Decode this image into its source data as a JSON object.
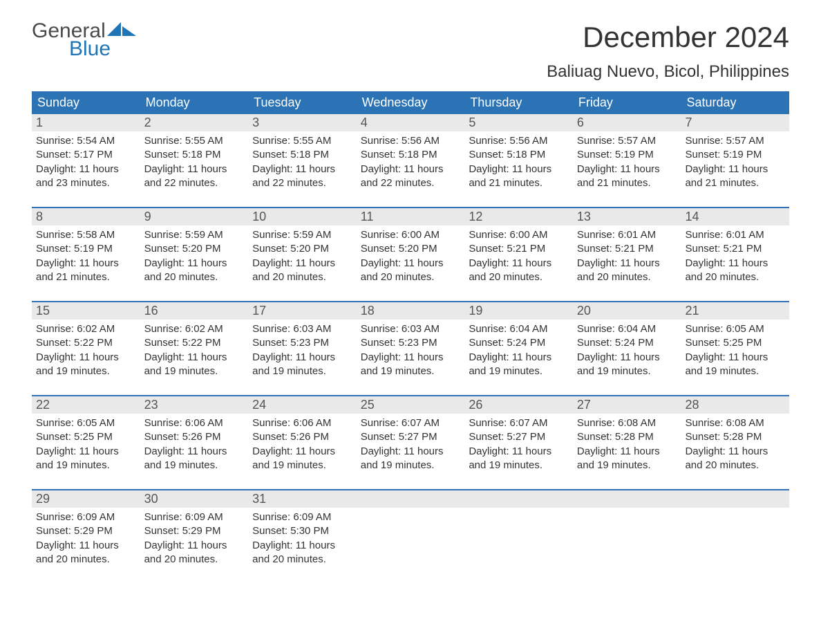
{
  "brand": {
    "word1": "General",
    "word2": "Blue",
    "logo_color": "#1f74b6",
    "text_gray": "#4a4a4a"
  },
  "header": {
    "month_title": "December 2024",
    "location": "Baliuag Nuevo, Bicol, Philippines"
  },
  "colors": {
    "header_bg": "#2b73b5",
    "header_text": "#ffffff",
    "daynum_bg": "#e9e9e9",
    "week_border": "#2b73b5",
    "body_text": "#333333",
    "page_bg": "#ffffff"
  },
  "typography": {
    "month_title_fontsize": 42,
    "location_fontsize": 24,
    "dayhead_fontsize": 18,
    "daynum_fontsize": 18,
    "body_fontsize": 15
  },
  "day_headers": [
    "Sunday",
    "Monday",
    "Tuesday",
    "Wednesday",
    "Thursday",
    "Friday",
    "Saturday"
  ],
  "weeks": [
    [
      {
        "num": "1",
        "sunrise": "Sunrise: 5:54 AM",
        "sunset": "Sunset: 5:17 PM",
        "daylight1": "Daylight: 11 hours",
        "daylight2": "and 23 minutes."
      },
      {
        "num": "2",
        "sunrise": "Sunrise: 5:55 AM",
        "sunset": "Sunset: 5:18 PM",
        "daylight1": "Daylight: 11 hours",
        "daylight2": "and 22 minutes."
      },
      {
        "num": "3",
        "sunrise": "Sunrise: 5:55 AM",
        "sunset": "Sunset: 5:18 PM",
        "daylight1": "Daylight: 11 hours",
        "daylight2": "and 22 minutes."
      },
      {
        "num": "4",
        "sunrise": "Sunrise: 5:56 AM",
        "sunset": "Sunset: 5:18 PM",
        "daylight1": "Daylight: 11 hours",
        "daylight2": "and 22 minutes."
      },
      {
        "num": "5",
        "sunrise": "Sunrise: 5:56 AM",
        "sunset": "Sunset: 5:18 PM",
        "daylight1": "Daylight: 11 hours",
        "daylight2": "and 21 minutes."
      },
      {
        "num": "6",
        "sunrise": "Sunrise: 5:57 AM",
        "sunset": "Sunset: 5:19 PM",
        "daylight1": "Daylight: 11 hours",
        "daylight2": "and 21 minutes."
      },
      {
        "num": "7",
        "sunrise": "Sunrise: 5:57 AM",
        "sunset": "Sunset: 5:19 PM",
        "daylight1": "Daylight: 11 hours",
        "daylight2": "and 21 minutes."
      }
    ],
    [
      {
        "num": "8",
        "sunrise": "Sunrise: 5:58 AM",
        "sunset": "Sunset: 5:19 PM",
        "daylight1": "Daylight: 11 hours",
        "daylight2": "and 21 minutes."
      },
      {
        "num": "9",
        "sunrise": "Sunrise: 5:59 AM",
        "sunset": "Sunset: 5:20 PM",
        "daylight1": "Daylight: 11 hours",
        "daylight2": "and 20 minutes."
      },
      {
        "num": "10",
        "sunrise": "Sunrise: 5:59 AM",
        "sunset": "Sunset: 5:20 PM",
        "daylight1": "Daylight: 11 hours",
        "daylight2": "and 20 minutes."
      },
      {
        "num": "11",
        "sunrise": "Sunrise: 6:00 AM",
        "sunset": "Sunset: 5:20 PM",
        "daylight1": "Daylight: 11 hours",
        "daylight2": "and 20 minutes."
      },
      {
        "num": "12",
        "sunrise": "Sunrise: 6:00 AM",
        "sunset": "Sunset: 5:21 PM",
        "daylight1": "Daylight: 11 hours",
        "daylight2": "and 20 minutes."
      },
      {
        "num": "13",
        "sunrise": "Sunrise: 6:01 AM",
        "sunset": "Sunset: 5:21 PM",
        "daylight1": "Daylight: 11 hours",
        "daylight2": "and 20 minutes."
      },
      {
        "num": "14",
        "sunrise": "Sunrise: 6:01 AM",
        "sunset": "Sunset: 5:21 PM",
        "daylight1": "Daylight: 11 hours",
        "daylight2": "and 20 minutes."
      }
    ],
    [
      {
        "num": "15",
        "sunrise": "Sunrise: 6:02 AM",
        "sunset": "Sunset: 5:22 PM",
        "daylight1": "Daylight: 11 hours",
        "daylight2": "and 19 minutes."
      },
      {
        "num": "16",
        "sunrise": "Sunrise: 6:02 AM",
        "sunset": "Sunset: 5:22 PM",
        "daylight1": "Daylight: 11 hours",
        "daylight2": "and 19 minutes."
      },
      {
        "num": "17",
        "sunrise": "Sunrise: 6:03 AM",
        "sunset": "Sunset: 5:23 PM",
        "daylight1": "Daylight: 11 hours",
        "daylight2": "and 19 minutes."
      },
      {
        "num": "18",
        "sunrise": "Sunrise: 6:03 AM",
        "sunset": "Sunset: 5:23 PM",
        "daylight1": "Daylight: 11 hours",
        "daylight2": "and 19 minutes."
      },
      {
        "num": "19",
        "sunrise": "Sunrise: 6:04 AM",
        "sunset": "Sunset: 5:24 PM",
        "daylight1": "Daylight: 11 hours",
        "daylight2": "and 19 minutes."
      },
      {
        "num": "20",
        "sunrise": "Sunrise: 6:04 AM",
        "sunset": "Sunset: 5:24 PM",
        "daylight1": "Daylight: 11 hours",
        "daylight2": "and 19 minutes."
      },
      {
        "num": "21",
        "sunrise": "Sunrise: 6:05 AM",
        "sunset": "Sunset: 5:25 PM",
        "daylight1": "Daylight: 11 hours",
        "daylight2": "and 19 minutes."
      }
    ],
    [
      {
        "num": "22",
        "sunrise": "Sunrise: 6:05 AM",
        "sunset": "Sunset: 5:25 PM",
        "daylight1": "Daylight: 11 hours",
        "daylight2": "and 19 minutes."
      },
      {
        "num": "23",
        "sunrise": "Sunrise: 6:06 AM",
        "sunset": "Sunset: 5:26 PM",
        "daylight1": "Daylight: 11 hours",
        "daylight2": "and 19 minutes."
      },
      {
        "num": "24",
        "sunrise": "Sunrise: 6:06 AM",
        "sunset": "Sunset: 5:26 PM",
        "daylight1": "Daylight: 11 hours",
        "daylight2": "and 19 minutes."
      },
      {
        "num": "25",
        "sunrise": "Sunrise: 6:07 AM",
        "sunset": "Sunset: 5:27 PM",
        "daylight1": "Daylight: 11 hours",
        "daylight2": "and 19 minutes."
      },
      {
        "num": "26",
        "sunrise": "Sunrise: 6:07 AM",
        "sunset": "Sunset: 5:27 PM",
        "daylight1": "Daylight: 11 hours",
        "daylight2": "and 19 minutes."
      },
      {
        "num": "27",
        "sunrise": "Sunrise: 6:08 AM",
        "sunset": "Sunset: 5:28 PM",
        "daylight1": "Daylight: 11 hours",
        "daylight2": "and 19 minutes."
      },
      {
        "num": "28",
        "sunrise": "Sunrise: 6:08 AM",
        "sunset": "Sunset: 5:28 PM",
        "daylight1": "Daylight: 11 hours",
        "daylight2": "and 20 minutes."
      }
    ],
    [
      {
        "num": "29",
        "sunrise": "Sunrise: 6:09 AM",
        "sunset": "Sunset: 5:29 PM",
        "daylight1": "Daylight: 11 hours",
        "daylight2": "and 20 minutes."
      },
      {
        "num": "30",
        "sunrise": "Sunrise: 6:09 AM",
        "sunset": "Sunset: 5:29 PM",
        "daylight1": "Daylight: 11 hours",
        "daylight2": "and 20 minutes."
      },
      {
        "num": "31",
        "sunrise": "Sunrise: 6:09 AM",
        "sunset": "Sunset: 5:30 PM",
        "daylight1": "Daylight: 11 hours",
        "daylight2": "and 20 minutes."
      },
      null,
      null,
      null,
      null
    ]
  ]
}
